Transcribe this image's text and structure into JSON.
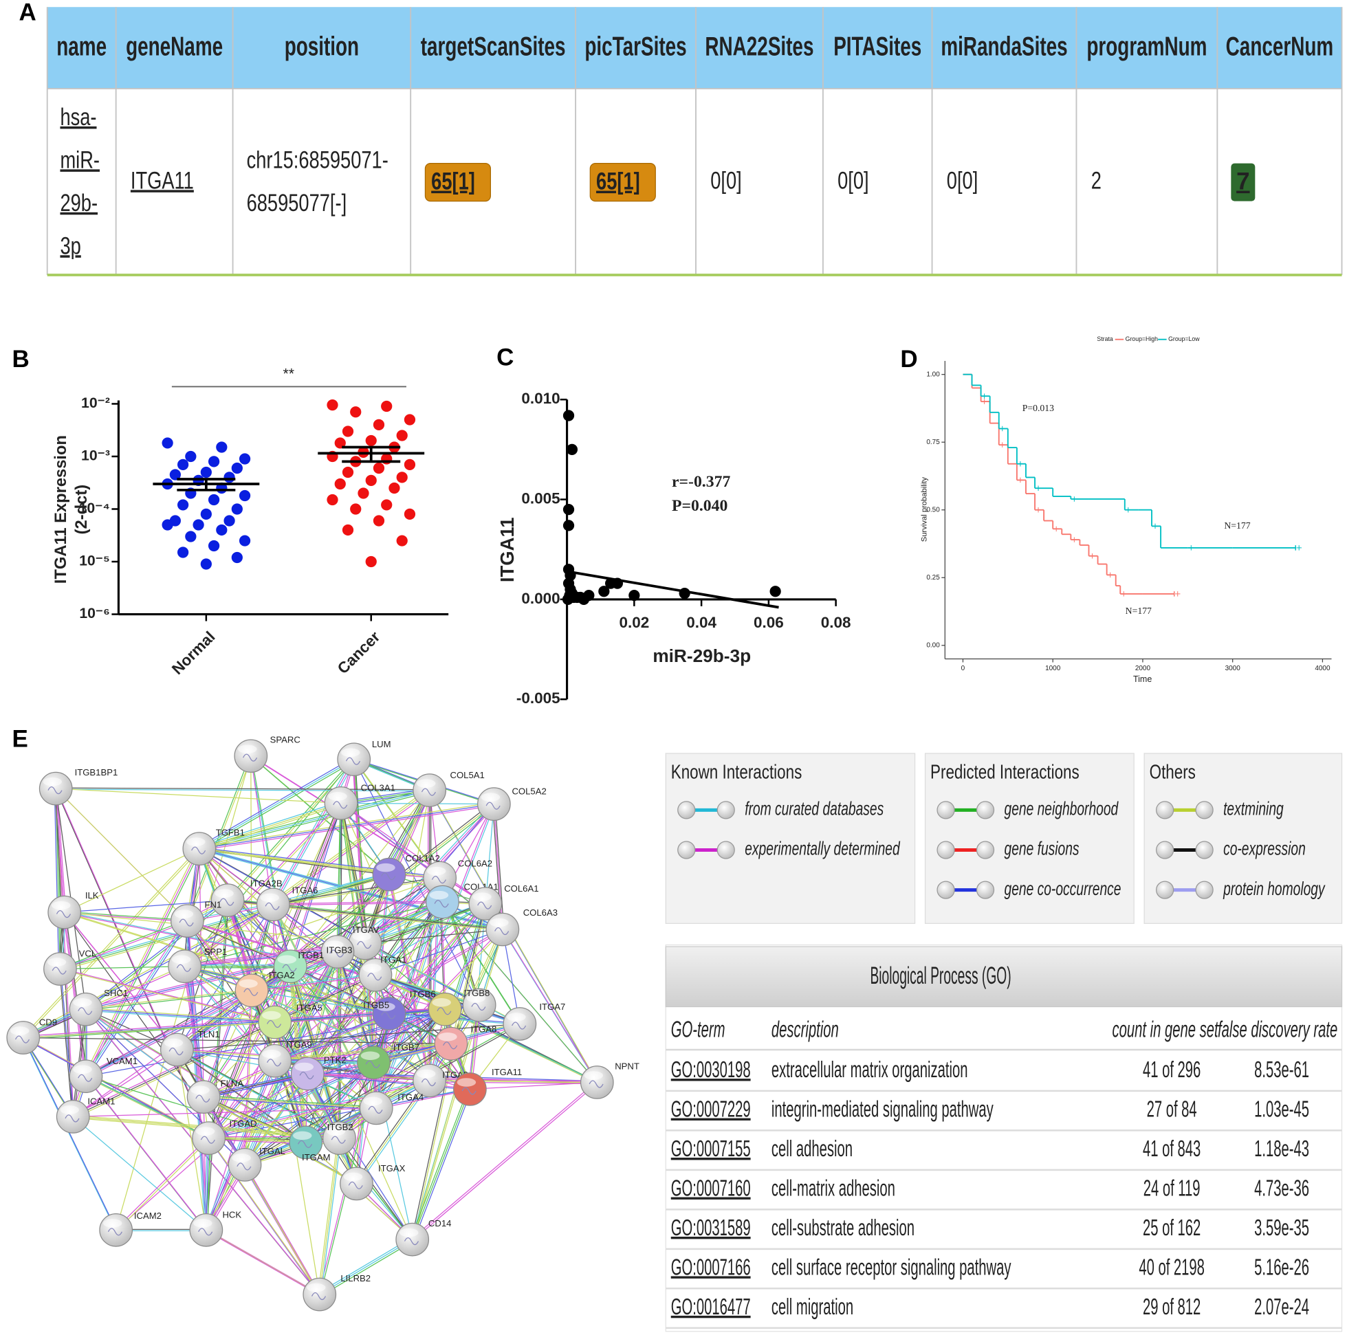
{
  "panel_labels": [
    "A",
    "B",
    "C",
    "D",
    "E"
  ],
  "target_table": {
    "header": [
      "name",
      "geneName",
      "position",
      "targetScanSites",
      "picTarSites",
      "RNA22Sites",
      "PITASites",
      "miRandaSites",
      "programNum",
      "CancerNum"
    ],
    "row": {
      "name": [
        "hsa-",
        "miR-",
        "29b-",
        "3p"
      ],
      "geneName": "ITGA11",
      "position": [
        "chr15:68595071-",
        "68595077[-]"
      ],
      "cells": [
        "65[1]",
        "65[1]",
        "0[0]",
        "0[0]",
        "0[0]",
        "2",
        "7"
      ]
    }
  },
  "chart_data": [
    {
      "type": "strip",
      "ylabel": [
        "ITGA11 Expression",
        "(2-dct)"
      ],
      "categories": [
        "Normal",
        "Cancer"
      ],
      "log_y": true,
      "ylim": [
        1e-06,
        0.01
      ],
      "yticks": [
        {
          "value": 0.01,
          "label": "10⁻²"
        },
        {
          "value": 0.001,
          "label": "10⁻³"
        },
        {
          "value": 0.0001,
          "label": "10⁻⁴"
        },
        {
          "value": 1e-05,
          "label": "10⁻⁵"
        },
        {
          "value": 1e-06,
          "label": "10⁻⁶"
        }
      ],
      "series": [
        {
          "color": "#0a1fe0",
          "mean": 0.0003,
          "sem": 7e-05,
          "values": [
            0.0018,
            0.0015,
            0.001,
            0.0009,
            0.0008,
            0.0007,
            0.0006,
            0.0005,
            0.00045,
            0.0004,
            0.00035,
            0.0003,
            0.00025,
            0.0002,
            0.00018,
            0.00015,
            0.00012,
            0.0001,
            8e-05,
            6e-05,
            6e-05,
            5e-05,
            5e-05,
            4e-05,
            3e-05,
            2.5e-05,
            2e-05,
            1.5e-05,
            1.2e-05,
            9e-06
          ]
        },
        {
          "color": "#ee1111",
          "mean": 0.00115,
          "sem": 0.00035,
          "values": [
            0.0095,
            0.009,
            0.007,
            0.005,
            0.004,
            0.003,
            0.0025,
            0.002,
            0.0018,
            0.0015,
            0.0012,
            0.001,
            0.0009,
            0.0008,
            0.0007,
            0.0006,
            0.0005,
            0.0004,
            0.00035,
            0.0003,
            0.00025,
            0.0002,
            0.00015,
            0.00012,
            0.0001,
            8e-05,
            6e-05,
            4e-05,
            2.5e-05,
            1e-05
          ]
        }
      ],
      "annotation": "**"
    },
    {
      "type": "scatter",
      "xlabel": "miR-29b-3p",
      "ylabel": "ITGA11",
      "color": "#000000",
      "x": [
        0.0005,
        0.0015,
        0.0005,
        0.0005,
        0.0005,
        0.001,
        0.0008,
        0.002,
        0.003,
        0.004,
        0.005,
        0.0065,
        0.011,
        0.013,
        0.015,
        0.02,
        0.035,
        0.062,
        0.0005,
        0.001,
        0.0003,
        0.0015
      ],
      "values": [
        0.0092,
        0.0075,
        0.0045,
        0.0037,
        0.0008,
        0.0005,
        0.0002,
        0.0001,
        0.0001,
        0.0001,
        0,
        0.0002,
        0.0004,
        0.0008,
        0.0008,
        0.0002,
        0.0003,
        0.0004,
        0.0015,
        0.0012,
        0,
        0.0003
      ],
      "xlim": [
        0,
        0.08
      ],
      "ylim": [
        -0.005,
        0.01
      ],
      "xticks": [
        0.02,
        0.04,
        0.06,
        0.08
      ],
      "yticks": [
        {
          "value": 0.01,
          "label": "0.010"
        },
        0.005,
        {
          "value": 0,
          "label": "0.000"
        },
        -0.005
      ],
      "fit": {
        "x": [
          0,
          0.063
        ],
        "y": [
          0.0014,
          -0.0004
        ]
      },
      "annotations": [
        "r=-0.377",
        "P=0.040"
      ]
    },
    {
      "type": "step",
      "legend_title": "Strata",
      "legend": "top",
      "xlabel": "Time",
      "ylabel": "Survival probability",
      "xlim": [
        -200,
        4100
      ],
      "ylim": [
        -0.05,
        1.05
      ],
      "xticks": [
        0,
        1000,
        2000,
        3000,
        4000
      ],
      "yticks": [
        {
          "value": 0,
          "label": "0.00"
        },
        0.25,
        {
          "value": 0.5,
          "label": "0.50"
        },
        0.75,
        {
          "value": 1,
          "label": "1.00"
        }
      ],
      "series": [
        {
          "name": "Group=High",
          "color": "#f8766d",
          "x": [
            0,
            100,
            200,
            300,
            400,
            500,
            600,
            700,
            800,
            900,
            1000,
            1100,
            1200,
            1300,
            1400,
            1500,
            1600,
            1700,
            1750,
            2000,
            2350
          ],
          "values": [
            1,
            0.95,
            0.9,
            0.82,
            0.74,
            0.67,
            0.61,
            0.56,
            0.5,
            0.46,
            0.43,
            0.41,
            0.39,
            0.37,
            0.33,
            0.3,
            0.26,
            0.22,
            0.19,
            0.19,
            0.19
          ]
        },
        {
          "name": "Group=Low",
          "color": "#00bfc4",
          "x": [
            0,
            100,
            200,
            300,
            400,
            500,
            600,
            700,
            800,
            1000,
            1200,
            1400,
            1800,
            1950,
            2100,
            2200,
            2500,
            3000,
            3700
          ],
          "values": [
            1,
            0.96,
            0.92,
            0.86,
            0.8,
            0.73,
            0.67,
            0.62,
            0.58,
            0.55,
            0.54,
            0.54,
            0.5,
            0.5,
            0.44,
            0.36,
            0.36,
            0.36,
            0.36
          ]
        }
      ],
      "annotations": [
        "P=0.013",
        "N=177",
        "N=177"
      ]
    }
  ],
  "network": {
    "nodes": [
      "SPARC",
      "LUM",
      "ITGB1BP1",
      "COL5A1",
      "COL5A2",
      "COL3A1",
      "TGFB1",
      "COL1A2",
      "COL6A2",
      "COL1A1",
      "COL6A1",
      "ITGA2B",
      "ITGA6",
      "ILK",
      "FN1",
      "COL6A3",
      "ITGAV",
      "ITGB3",
      "SPP1",
      "VCL",
      "ITGB1",
      "ITGA1",
      "ITGA2",
      "SHC1",
      "ITGB6",
      "ITGB8",
      "ITGA5",
      "ITGB5",
      "ITGA7",
      "CD9",
      "TLN1",
      "ITGA8",
      "ITGA9",
      "ITGB7",
      "NPNT",
      "VCAM1",
      "PTK2",
      "ITGA3",
      "ITGA11",
      "FLNA",
      "ICAM1",
      "ITGA4",
      "ITGAD",
      "ITGB2",
      "ITGAL",
      "ITGAM",
      "ITGAX",
      "ICAM2",
      "HCK",
      "CD14",
      "LILRB2"
    ]
  },
  "network_legend": [
    {
      "title": "Known Interactions",
      "items": [
        {
          "label": "from curated databases",
          "color": "#22b8d6"
        },
        {
          "label": "experimentally determined",
          "color": "#cc22cc"
        }
      ]
    },
    {
      "title": "Predicted Interactions",
      "items": [
        {
          "label": "gene neighborhood",
          "color": "#22b022"
        },
        {
          "label": "gene fusions",
          "color": "#ee2222"
        },
        {
          "label": "gene co-occurrence",
          "color": "#2233dd"
        }
      ]
    },
    {
      "title": "Others",
      "items": [
        {
          "label": "textmining",
          "color": "#b8d030"
        },
        {
          "label": "co-expression",
          "color": "#111111"
        },
        {
          "label": "protein homology",
          "color": "#9d9df0"
        }
      ]
    }
  ],
  "go_table": {
    "title": "Biological Process (GO)",
    "header": [
      "GO-term",
      "description",
      "count in gene set",
      "false discovery rate"
    ],
    "rows": [
      [
        "GO:0030198",
        "extracellular matrix organization",
        "41 of 296",
        "8.53e-61"
      ],
      [
        "GO:0007229",
        "integrin-mediated signaling pathway",
        "27 of 84",
        "1.03e-45"
      ],
      [
        "GO:0007155",
        "cell adhesion",
        "41 of 843",
        "1.18e-43"
      ],
      [
        "GO:0007160",
        "cell-matrix adhesion",
        "24 of 119",
        "4.73e-36"
      ],
      [
        "GO:0031589",
        "cell-substrate adhesion",
        "25 of 162",
        "3.59e-35"
      ],
      [
        "GO:0007166",
        "cell surface receptor signaling pathway",
        "40 of 2198",
        "5.16e-26"
      ],
      [
        "GO:0016477",
        "cell migration",
        "29 of 812",
        "2.07e-24"
      ]
    ]
  }
}
